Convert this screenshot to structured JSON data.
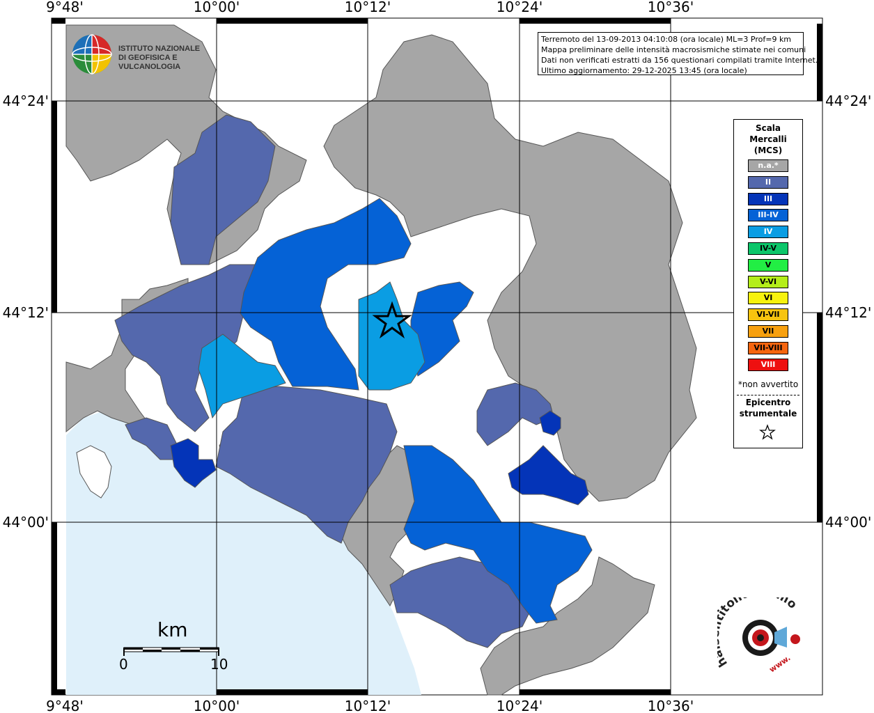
{
  "info": {
    "line1": "Terremoto del 13-09-2013 04:10:08 (ora locale) ML=3 Prof=9 km",
    "line2": "Mappa preliminare delle intensità macrosismiche stimate nei comuni",
    "line3": "Dati non verificati estratti da 156 questionari compilati tramite Internet.",
    "line4": "Ultimo aggiornamento: 29-12-2025 13:45 (ora locale)"
  },
  "ingv_logo": {
    "line1": "ISTITUTO NAZIONALE",
    "line2": "DI GEOFISICA E VULCANOLOGIA"
  },
  "axes": {
    "lon_labels": [
      "9°48'",
      "10°00'",
      "10°12'",
      "10°24'",
      "10°36'"
    ],
    "lat_labels": [
      "44°24'",
      "44°12'",
      "44°00'"
    ]
  },
  "legend": {
    "title1": "Scala",
    "title2": "Mercalli",
    "title3": "(MCS)",
    "items": [
      {
        "label": "n.a.*",
        "color": "#a6a6a6",
        "text_color": "#ffffff"
      },
      {
        "label": "II",
        "color": "#5468ad",
        "text_color": "#ffffff"
      },
      {
        "label": "III",
        "color": "#0434b8",
        "text_color": "#ffffff"
      },
      {
        "label": "III-IV",
        "color": "#0562d6",
        "text_color": "#ffffff"
      },
      {
        "label": "IV",
        "color": "#0a9de3",
        "text_color": "#ffffff"
      },
      {
        "label": "IV-V",
        "color": "#0cc66a",
        "text_color": "#000000"
      },
      {
        "label": "V",
        "color": "#22ee44",
        "text_color": "#000000"
      },
      {
        "label": "V-VI",
        "color": "#b4ee1a",
        "text_color": "#000000"
      },
      {
        "label": "VI",
        "color": "#f7f20e",
        "text_color": "#000000"
      },
      {
        "label": "VI-VII",
        "color": "#f7c40f",
        "text_color": "#000000"
      },
      {
        "label": "VII",
        "color": "#f7a00f",
        "text_color": "#000000"
      },
      {
        "label": "VII-VIII",
        "color": "#f5650f",
        "text_color": "#000000"
      },
      {
        "label": "VIII",
        "color": "#ee1010",
        "text_color": "#ffffff"
      }
    ],
    "note": "*non avvertito",
    "epicenter1": "Epicentro",
    "epicenter2": "strumentale"
  },
  "scale_bar": {
    "unit": "km",
    "start": "0",
    "end": "10"
  },
  "hst_logo": {
    "text": "haisentitoilterremoto.it",
    "prefix": "www."
  },
  "colors": {
    "sea": "#dff0fa",
    "na": "#a6a6a6",
    "ii": "#5468ad",
    "iii": "#0434b8",
    "iii_iv": "#0562d6",
    "iv": "#0a9de3",
    "border": "#555555"
  }
}
